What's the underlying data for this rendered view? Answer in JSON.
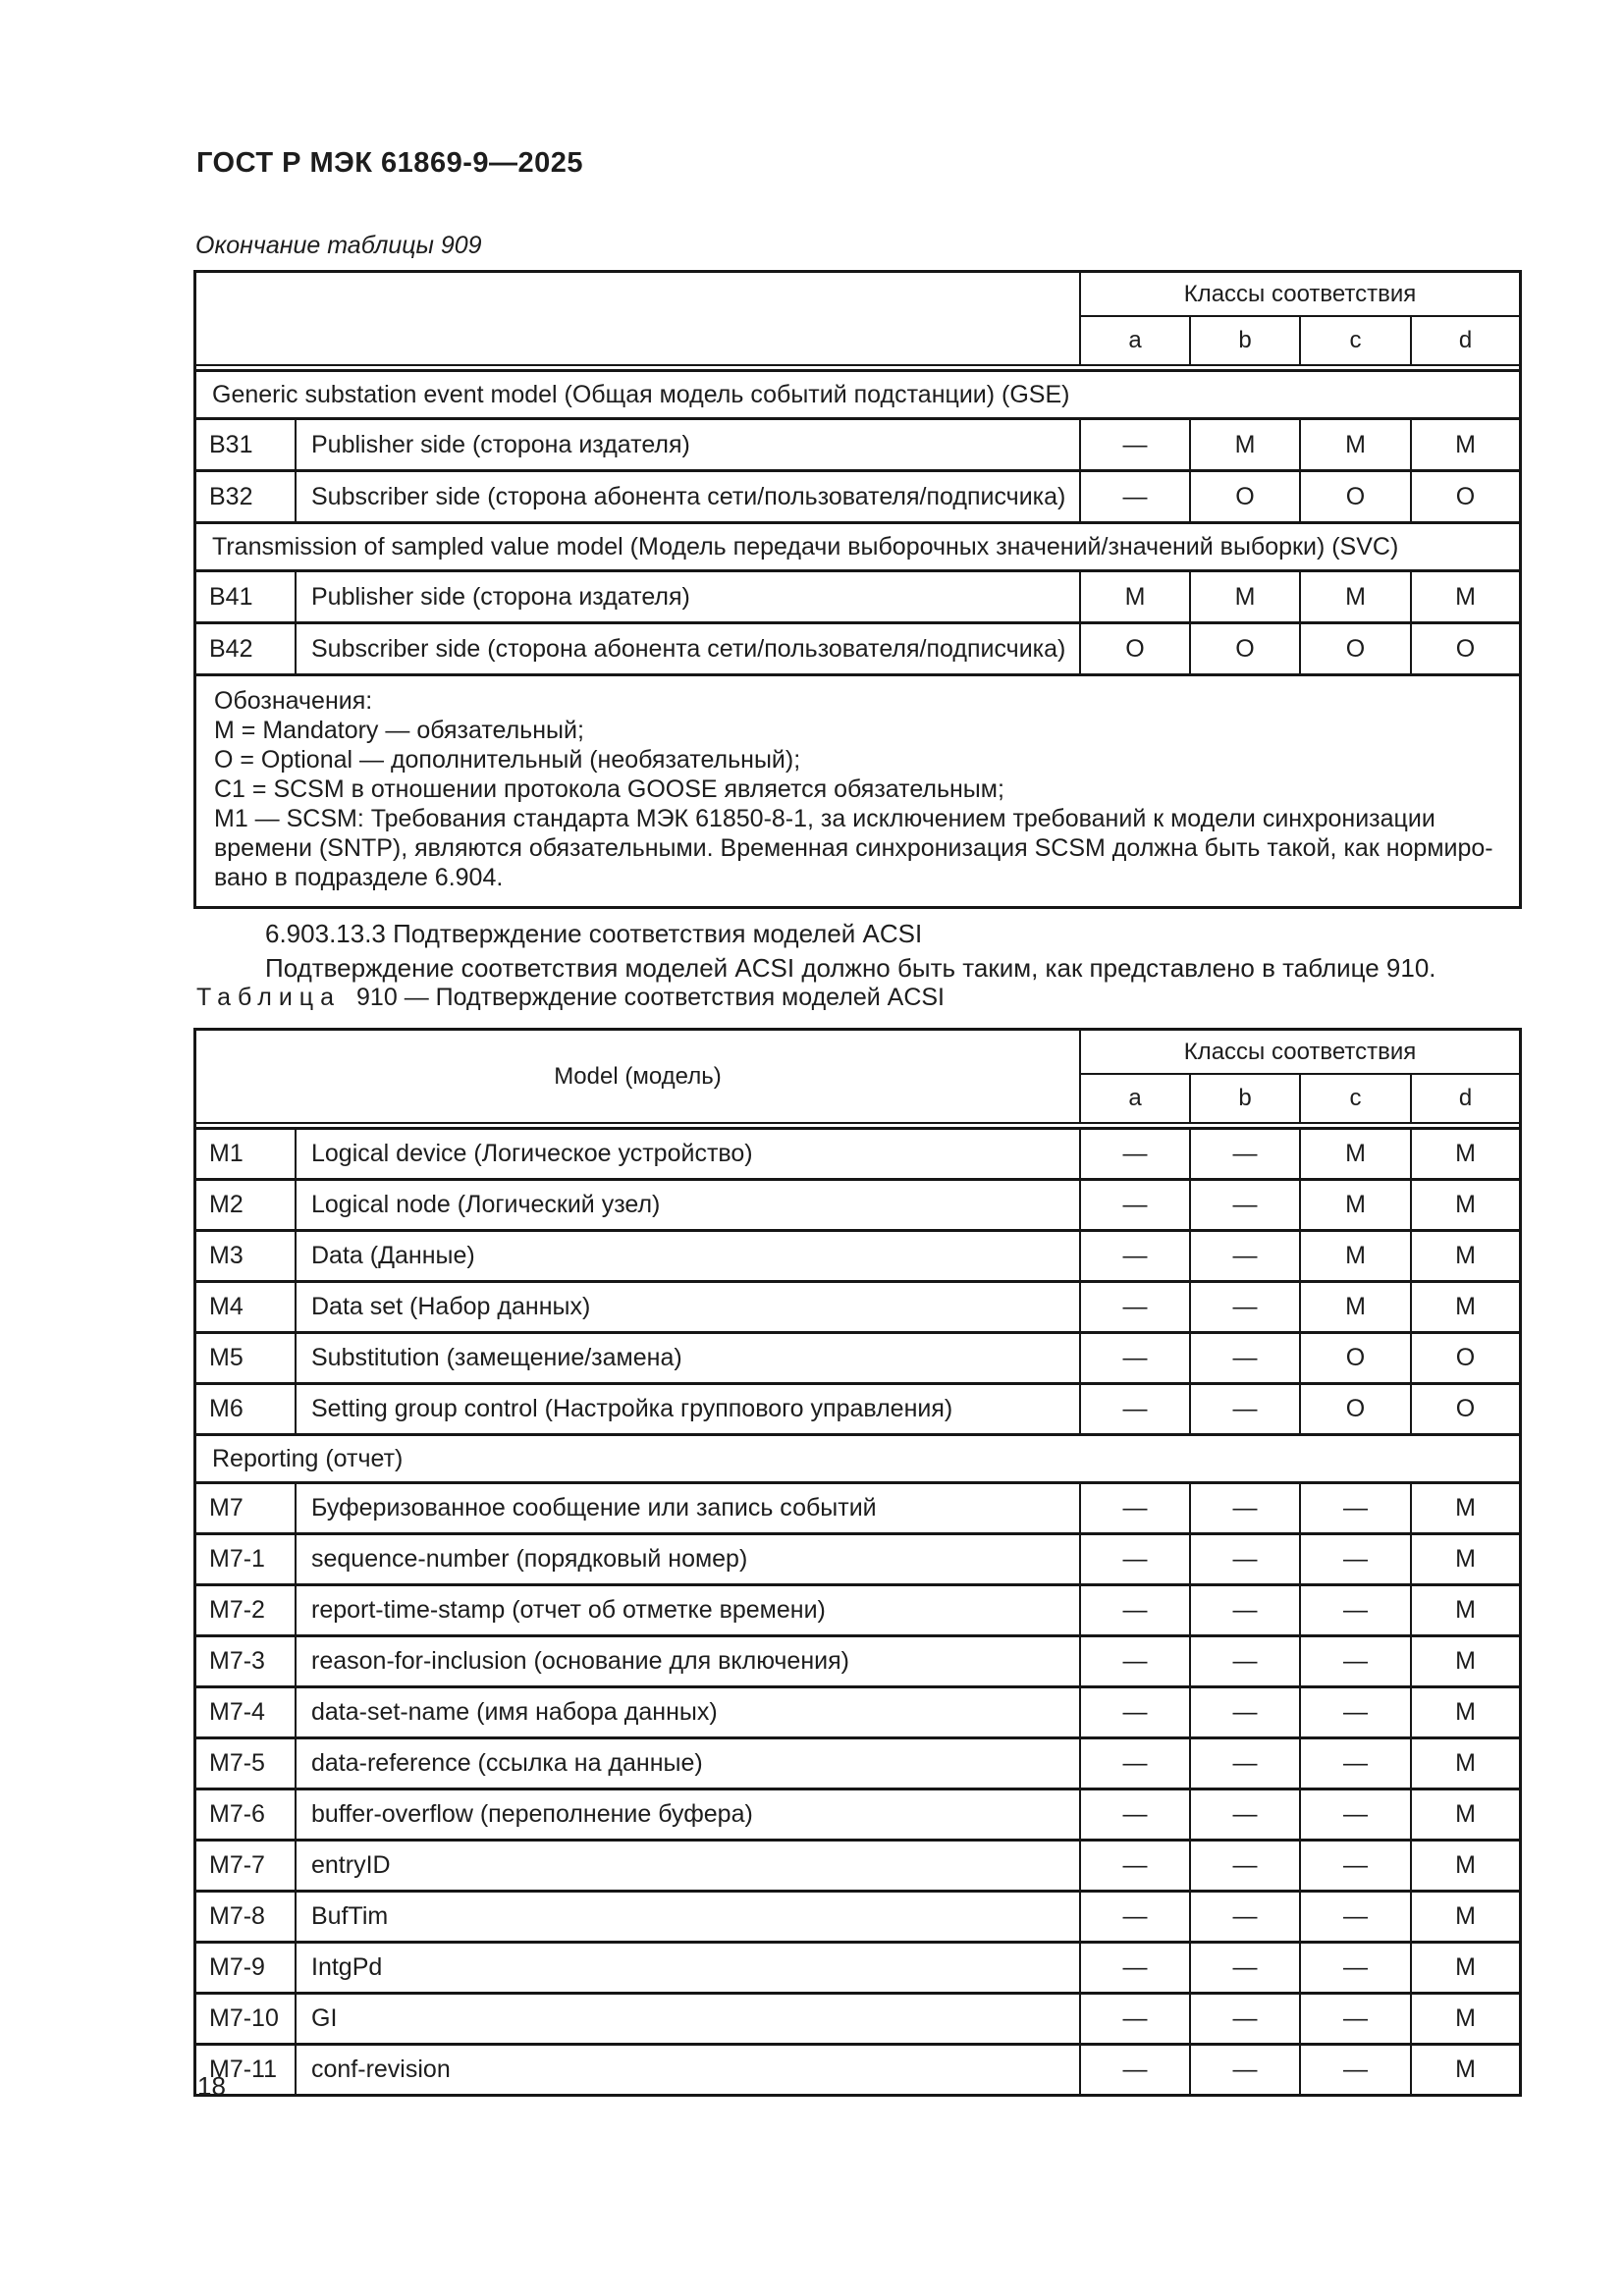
{
  "page": {
    "standard_code": "ГОСТ Р МЭК 61869-9—2025",
    "continuation_label": "Окончание таблицы 909",
    "page_number": "18"
  },
  "section": {
    "heading": "6.903.13.3 Подтверждение соответствия моделей ACSI",
    "paragraph": "Подтверждение соответствия моделей ACSI должно быть таким, как представлено в таблице 910."
  },
  "caption910": {
    "word": "Таблица",
    "rest": "910 — Подтверждение соответствия моделей ACSI"
  },
  "table909": {
    "classes_header": "Классы соответствия",
    "columns": [
      "a",
      "b",
      "c",
      "d"
    ],
    "rows": [
      {
        "section": "Generic substation event model (Общая модель событий подстанции) (GSE)"
      },
      {
        "code": "B31",
        "desc": "Publisher side (сторона издателя)",
        "vals": [
          "—",
          "M",
          "M",
          "M"
        ]
      },
      {
        "code": "B32",
        "desc": "Subscriber side (сторона абонента сети/пользователя/подписчика)",
        "vals": [
          "—",
          "O",
          "O",
          "O"
        ]
      },
      {
        "section": "Transmission of sampled value model (Модель передачи выборочных значений/значений выборки) (SVC)"
      },
      {
        "code": "B41",
        "desc": "Publisher side (сторона издателя)",
        "vals": [
          "M",
          "M",
          "M",
          "M"
        ]
      },
      {
        "code": "B42",
        "desc": "Subscriber side (сторона абонента сети/пользователя/подписчика)",
        "vals": [
          "O",
          "O",
          "O",
          "O"
        ]
      }
    ],
    "notes_lines": [
      "Обозначения:",
      "M = Mandatory — обязательный;",
      "O = Optional — дополнительный (необязательный);",
      "C1 = SCSM в отношении протокола GOOSE является обязательным;",
      "M1 — SCSM: Требования стандарта МЭК 61850-8-1, за исключением требований к модели синхронизации",
      "времени (SNTP), являются обязательными. Временная синхронизация SCSM должна быть такой, как нормиро-",
      "вано в подразделе 6.904."
    ]
  },
  "table910": {
    "model_header": "Model (модель)",
    "classes_header": "Классы соответствия",
    "columns": [
      "a",
      "b",
      "c",
      "d"
    ],
    "rows": [
      {
        "code": "M1",
        "desc": "Logical device (Логическое устройство)",
        "vals": [
          "—",
          "—",
          "M",
          "M"
        ]
      },
      {
        "code": "M2",
        "desc": "Logical node (Логический узел)",
        "vals": [
          "—",
          "—",
          "M",
          "M"
        ]
      },
      {
        "code": "M3",
        "desc": "Data (Данные)",
        "vals": [
          "—",
          "—",
          "M",
          "M"
        ]
      },
      {
        "code": "M4",
        "desc": "Data set (Набор данных)",
        "vals": [
          "—",
          "—",
          "M",
          "M"
        ]
      },
      {
        "code": "M5",
        "desc": "Substitution (замещение/замена)",
        "vals": [
          "—",
          "—",
          "O",
          "O"
        ]
      },
      {
        "code": "M6",
        "desc": "Setting group control (Настройка группового управления)",
        "vals": [
          "—",
          "—",
          "O",
          "O"
        ]
      },
      {
        "section": "Reporting (отчет)"
      },
      {
        "code": "M7",
        "desc": "Буферизованное сообщение или запись событий",
        "vals": [
          "—",
          "—",
          "—",
          "M"
        ]
      },
      {
        "code": "M7-1",
        "desc": "sequence-number (порядковый номер)",
        "vals": [
          "—",
          "—",
          "—",
          "M"
        ]
      },
      {
        "code": "M7-2",
        "desc": "report-time-stamp (отчет об отметке времени)",
        "vals": [
          "—",
          "—",
          "—",
          "M"
        ]
      },
      {
        "code": "M7-3",
        "desc": "reason-for-inclusion (основание для включения)",
        "vals": [
          "—",
          "—",
          "—",
          "M"
        ]
      },
      {
        "code": "M7-4",
        "desc": "data-set-name (имя набора данных)",
        "vals": [
          "—",
          "—",
          "—",
          "M"
        ]
      },
      {
        "code": "M7-5",
        "desc": "data-reference (ссылка на данные)",
        "vals": [
          "—",
          "—",
          "—",
          "M"
        ]
      },
      {
        "code": "M7-6",
        "desc": "buffer-overflow (переполнение буфера)",
        "vals": [
          "—",
          "—",
          "—",
          "M"
        ]
      },
      {
        "code": "M7-7",
        "desc": "entryID",
        "vals": [
          "—",
          "—",
          "—",
          "M"
        ]
      },
      {
        "code": "M7-8",
        "desc": "BufTim",
        "vals": [
          "—",
          "—",
          "—",
          "M"
        ]
      },
      {
        "code": "M7-9",
        "desc": "IntgPd",
        "vals": [
          "—",
          "—",
          "—",
          "M"
        ]
      },
      {
        "code": "M7-10",
        "desc": "GI",
        "vals": [
          "—",
          "—",
          "—",
          "M"
        ]
      },
      {
        "code": "M7-11",
        "desc": "conf-revision",
        "vals": [
          "—",
          "—",
          "—",
          "M"
        ]
      }
    ]
  }
}
